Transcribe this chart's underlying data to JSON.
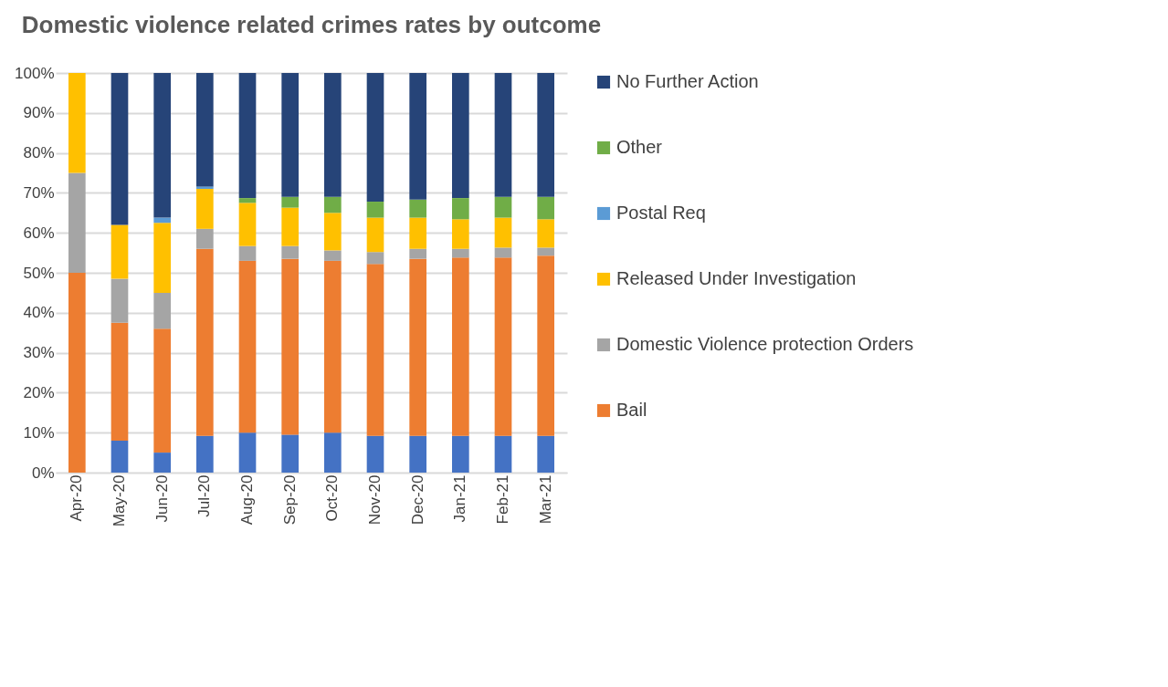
{
  "chart_data": {
    "type": "bar",
    "stacked": true,
    "title": "Domestic violence related crimes rates by outcome",
    "categories": [
      "Apr-20",
      "May-20",
      "Jun-20",
      "Jul-20",
      "Aug-20",
      "Sep-20",
      "Oct-20",
      "Nov-20",
      "Dec-20",
      "Jan-21",
      "Feb-21",
      "Mar-21"
    ],
    "series": [
      {
        "color": "#4472c4",
        "values": [
          0,
          8,
          5,
          9.2,
          10,
          9.5,
          10,
          9.2,
          9.2,
          9.2,
          9.2,
          9.2
        ]
      },
      {
        "name": "Bail",
        "color": "#ed7d31",
        "values": [
          50,
          29.5,
          31,
          46.8,
          43,
          44,
          43,
          43,
          44.3,
          44.6,
          44.6,
          45.1
        ]
      },
      {
        "name": "Domestic Violence protection Orders",
        "color": "#a5a5a5",
        "values": [
          25,
          11,
          9,
          5,
          3.7,
          3.2,
          2.6,
          3,
          2.5,
          2.2,
          2.5,
          2
        ]
      },
      {
        "name": "Released Under Investigation",
        "color": "#ffc000",
        "values": [
          25,
          13.5,
          17.5,
          10,
          10.8,
          9.6,
          9.4,
          8.6,
          7.8,
          7.4,
          7.5,
          7.1
        ]
      },
      {
        "name": "Postal Req",
        "color": "#5b9bd5",
        "values": [
          0,
          0,
          1.3,
          0.6,
          0,
          0,
          0,
          0,
          0,
          0,
          0,
          0
        ]
      },
      {
        "name": "Other",
        "color": "#70ad47",
        "values": [
          0,
          0,
          0,
          0,
          1.2,
          2.7,
          4,
          4,
          4.5,
          5.3,
          5.2,
          5.6
        ]
      },
      {
        "name": "No Further Action",
        "color": "#264478",
        "values": [
          0,
          38,
          36.2,
          28.4,
          31.3,
          31,
          31,
          32.2,
          31.7,
          31.3,
          31,
          31
        ]
      }
    ],
    "ylim": [
      0,
      100
    ],
    "yticks": [
      {
        "value": 0,
        "label": "0%"
      },
      {
        "value": 10,
        "label": "10%"
      },
      {
        "value": 20,
        "label": "20%"
      },
      {
        "value": 30,
        "label": "30%"
      },
      {
        "value": 40,
        "label": "40%"
      },
      {
        "value": 50,
        "label": "50%"
      },
      {
        "value": 60,
        "label": "60%"
      },
      {
        "value": 70,
        "label": "70%"
      },
      {
        "value": 80,
        "label": "80%"
      },
      {
        "value": 90,
        "label": "90%"
      },
      {
        "value": 100,
        "label": "100%"
      }
    ],
    "grid": "y",
    "legend": "right"
  }
}
